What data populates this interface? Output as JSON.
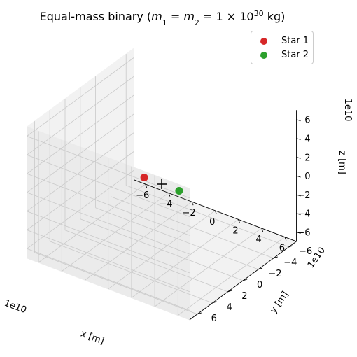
{
  "chart_data": {
    "type": "scatter3d",
    "title": "Equal-mass binary (m₁ = m₂ = 1 × 10³⁰ kg)",
    "title_parts": {
      "prefix": "Equal-mass binary (",
      "m1": "m",
      "sub1": "1",
      "eq": " = ",
      "m2": "m",
      "sub2": "2",
      "mid": " = 1 × 10",
      "exp": "30",
      "unit": " kg)"
    },
    "xlabel": "x [m]",
    "ylabel": "y [m]",
    "zlabel": "z [m]",
    "x_offset": "1e10",
    "y_offset": "1e10",
    "z_offset": "1e10",
    "xlim": [
      -7,
      7
    ],
    "ylim": [
      -7,
      7
    ],
    "zlim": [
      -7,
      7
    ],
    "x_ticks": [
      "−6",
      "−4",
      "−2",
      "0",
      "2",
      "4",
      "6"
    ],
    "y_ticks": [
      "−6",
      "−4",
      "−2",
      "0",
      "2",
      "4",
      "6"
    ],
    "z_ticks": [
      "−6",
      "−4",
      "−2",
      "0",
      "2",
      "4",
      "6"
    ],
    "grid": true,
    "legend_position": "top-right",
    "series": [
      {
        "name": "Star 1",
        "color": "#d62728",
        "marker": "circle",
        "points": [
          [
            -1.5,
            0,
            0
          ]
        ]
      },
      {
        "name": "Star 2",
        "color": "#2ca02c",
        "marker": "circle",
        "points": [
          [
            1.5,
            0,
            0
          ]
        ]
      }
    ],
    "center_of_mass": {
      "marker": "plus",
      "color": "#000000",
      "point": [
        0,
        0,
        0
      ]
    }
  }
}
